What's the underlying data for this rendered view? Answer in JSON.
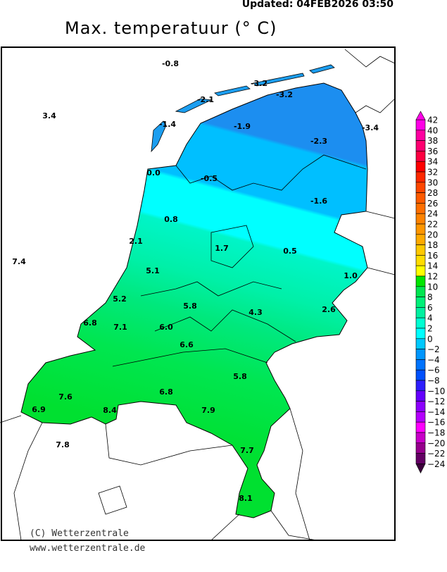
{
  "header": {
    "updated": "Updated: 04FEB2026 03:50",
    "title": "Max. temperatuur (° C)"
  },
  "footer": {
    "copyright": "(C) Wetterzentrale",
    "url": "www.wetterzentrale.de"
  },
  "map": {
    "region": "Netherlands",
    "variable": "maximum temperature",
    "unit": "°C",
    "values": [
      "-0.8",
      "-3.2",
      "-2.1",
      "-3.2",
      "3.4",
      "-1.4",
      "-1.9",
      "-3.4",
      "-2.3",
      "0.0",
      "-0.5",
      "-1.6",
      "0.8",
      "2.1",
      "1.7",
      "0.5",
      "7.4",
      "1.0",
      "5.1",
      "5.2",
      "5.8",
      "2.6",
      "4.3",
      "6.8",
      "7.1",
      "6.0",
      "6.6",
      "5.8",
      "7.6",
      "6.8",
      "6.9",
      "8.4",
      "7.9",
      "7.8",
      "7.7",
      "8.1"
    ]
  },
  "legend": {
    "labels": [
      "42",
      "40",
      "38",
      "36",
      "34",
      "32",
      "30",
      "28",
      "26",
      "24",
      "22",
      "20",
      "18",
      "16",
      "14",
      "12",
      "10",
      "8",
      "6",
      "4",
      "2",
      "0",
      "−2",
      "−4",
      "−6",
      "−8",
      "−10",
      "−12",
      "−14",
      "−16",
      "−18",
      "−20",
      "−22",
      "−24"
    ],
    "colors": [
      "#ff00e6",
      "#ff00a0",
      "#ff0070",
      "#ff0040",
      "#ff0000",
      "#ff2800",
      "#ff4600",
      "#ff5a00",
      "#ff6e00",
      "#ff8200",
      "#ff9600",
      "#ffaa00",
      "#ffc800",
      "#ffdc00",
      "#ffff00",
      "#00e600",
      "#00e650",
      "#00f078",
      "#00f0a0",
      "#00ffd2",
      "#00ffff",
      "#00c8ff",
      "#0096ff",
      "#0073ff",
      "#0050ff",
      "#2d1eff",
      "#6400ff",
      "#8c00ff",
      "#b400ff",
      "#ff00ff",
      "#c800c8",
      "#96008c",
      "#640064"
    ],
    "top_arrow_color": "#ff00e6",
    "bottom_arrow_color": "#3c003c"
  }
}
